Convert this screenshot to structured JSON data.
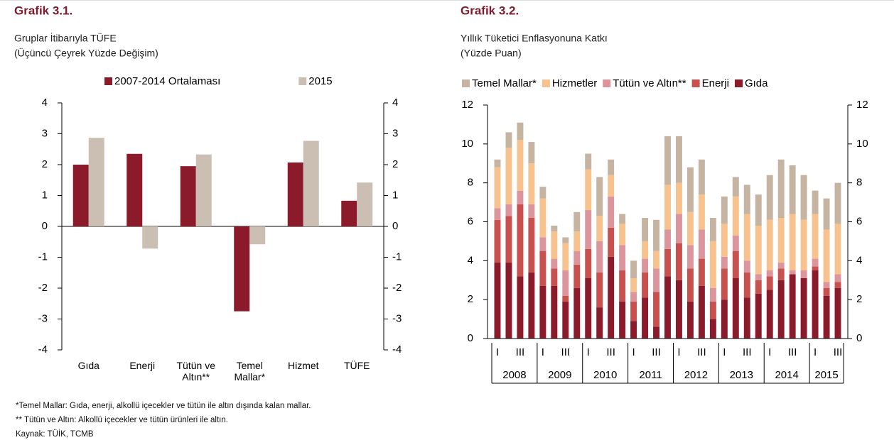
{
  "chart_data": [
    {
      "type": "bar",
      "title": "Grafik 3.1.",
      "subtitle": [
        "Gruplar İtibarıyla TÜFE",
        "(Üçüncü Çeyrek Yüzde Değişim)"
      ],
      "categories": [
        "Gıda",
        "Enerji",
        "Tütün ve Altın**",
        "Temel Mallar*",
        "Hizmet",
        "TÜFE"
      ],
      "series": [
        {
          "name": "2007-2014 Ortalaması",
          "color": "#8b1a2b",
          "values": [
            2.0,
            2.35,
            1.95,
            -2.75,
            2.07,
            0.83
          ]
        },
        {
          "name": "2015",
          "color": "#cbbfb3",
          "values": [
            2.87,
            -0.72,
            2.33,
            -0.58,
            2.77,
            1.42
          ]
        }
      ],
      "ylim": [
        -4,
        4
      ],
      "yticks": [
        -4,
        -3,
        -2,
        -1,
        0,
        1,
        2,
        3,
        4
      ],
      "y2lim": [
        -4,
        4
      ],
      "y2ticks": [
        -4,
        -3,
        -2,
        -1,
        0,
        1,
        2,
        3,
        4
      ],
      "legend": "top",
      "grid": false
    },
    {
      "type": "stacked_bar",
      "title": "Grafik 3.2.",
      "subtitle": [
        "Yıllık Tüketici Enflasyonuna Katkı",
        "(Yüzde Puan)"
      ],
      "categories": [
        "I",
        null,
        "III",
        null,
        "I",
        null,
        "III",
        null,
        "I",
        null,
        "III",
        null,
        "I",
        null,
        "III",
        null,
        "I",
        null,
        "III",
        null,
        "I",
        null,
        "III",
        null,
        "I",
        null,
        "III",
        null,
        "I",
        null,
        "III"
      ],
      "year_labels": [
        "2008",
        "2009",
        "2010",
        "2011",
        "2012",
        "2013",
        "2014",
        "2015"
      ],
      "series": [
        {
          "name": "Temel Mallar*",
          "color": "#c6b4a3",
          "values": [
            0.4,
            0.8,
            0.9,
            1.1,
            0.6,
            0.3,
            0.3,
            1.0,
            0.8,
            2.0,
            0.8,
            0.5,
            0.9,
            1.2,
            1.6,
            2.5,
            2.4,
            2.3,
            1.8,
            1.2,
            1.4,
            1.0,
            1.5,
            1.6,
            2.3,
            3.0,
            2.5,
            2.3,
            1.2,
            1.6,
            2.1
          ]
        },
        {
          "name": "Hizmetler",
          "color": "#f8c28e",
          "values": [
            2.1,
            2.9,
            2.6,
            2.1,
            2.0,
            1.4,
            1.4,
            1.0,
            2.1,
            1.3,
            1.1,
            1.1,
            0.7,
            0.9,
            0.9,
            2.3,
            1.6,
            1.7,
            1.8,
            2.4,
            1.7,
            2.0,
            2.4,
            2.5,
            2.6,
            2.3,
            2.9,
            2.6,
            2.3,
            2.7,
            2.6
          ]
        },
        {
          "name": "Tütün ve Altın**",
          "color": "#dc959c",
          "values": [
            0.6,
            0.6,
            0.7,
            0.7,
            0.7,
            0.5,
            1.3,
            0.7,
            2.0,
            1.6,
            1.6,
            1.3,
            0.5,
            0.7,
            1.2,
            1.0,
            1.5,
            1.2,
            1.5,
            0.7,
            0.6,
            0.8,
            0.6,
            0.3,
            0.3,
            0.3,
            0.2,
            0.4,
            0.4,
            0.3,
            0.4
          ]
        },
        {
          "name": "Enerji",
          "color": "#c8504e",
          "values": [
            2.2,
            2.4,
            3.7,
            2.8,
            1.8,
            0.9,
            0.3,
            1.2,
            1.5,
            1.8,
            1.5,
            1.6,
            1.0,
            1.3,
            1.8,
            1.4,
            1.9,
            1.7,
            1.4,
            0.9,
            1.6,
            1.4,
            1.3,
            0.7,
            0.7,
            0.6,
            0.0,
            0.0,
            0.2,
            0.4,
            0.3
          ]
        },
        {
          "name": "Gıda",
          "color": "#8b1a2b",
          "values": [
            3.9,
            3.9,
            3.2,
            3.4,
            2.7,
            2.7,
            1.9,
            2.6,
            3.1,
            1.6,
            4.2,
            1.9,
            0.9,
            2.1,
            0.6,
            3.2,
            3.0,
            1.9,
            2.7,
            1.0,
            2.0,
            3.1,
            2.1,
            2.3,
            2.5,
            3.0,
            3.3,
            3.1,
            3.5,
            2.2,
            2.6
          ]
        }
      ],
      "ylim": [
        0,
        12
      ],
      "yticks": [
        0,
        2,
        4,
        6,
        8,
        10,
        12
      ],
      "y2lim": [
        0,
        12
      ],
      "y2ticks": [
        0,
        2,
        4,
        6,
        8,
        10,
        12
      ],
      "legend": "top",
      "grid": false
    }
  ],
  "notes": [
    "*Temel Mallar: Gıda, enerji, alkollü içecekler ve tütün ile altın dışında kalan mallar.",
    "** Tütün ve Altın: Alkollü içecekler ve tütün ürünleri ile altın.",
    "Kaynak: TÜİK, TCMB"
  ]
}
